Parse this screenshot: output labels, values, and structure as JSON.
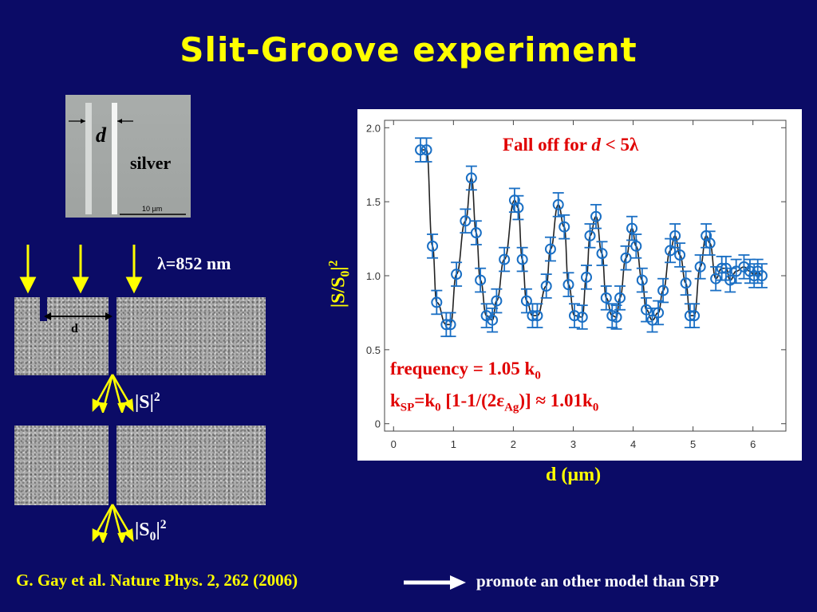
{
  "slide": {
    "title": "Slit-Groove experiment",
    "sem_image": {
      "d_label": "d",
      "material_label": "silver",
      "scale_label": "10 µm"
    },
    "schematic": {
      "wavelength_label": "λ=852 nm",
      "d_label": "d",
      "signal_label": "|S|",
      "signal_power": "2",
      "ref_label_base": "|S",
      "ref_label_sub": "0",
      "ref_label_end": "|",
      "ref_power": "2"
    },
    "annotations": {
      "fall_off_text": "Fall off for ",
      "fall_off_var": "d",
      "fall_off_end": " < 5λ",
      "frequency_text": "frequency = 1.05 k",
      "frequency_sub": "0",
      "ksp_k": "k",
      "ksp_sub": "SP",
      "ksp_mid": "=k",
      "ksp_mid_sub": "0",
      "ksp_bracket": " [1-1/(2ε",
      "ksp_ag_sub": "Ag",
      "ksp_end": ")] ≈ 1.01k",
      "ksp_end_sub": "0"
    },
    "footer": {
      "citation": "G. Gay et al. Nature Phys. 2, 262 (2006)",
      "note": "promote an other model than SPP"
    },
    "colors": {
      "background": "#0b0b66",
      "title": "#ffff00",
      "annotation": "#e00000",
      "data": "#1a6fc4"
    }
  },
  "chart_data": {
    "type": "scatter",
    "xlabel": "d (µm)",
    "ylabel_base": "|S/S",
    "ylabel_sub": "0",
    "ylabel_end": "|",
    "ylabel_power": "2",
    "xlim": [
      -0.15,
      6.55
    ],
    "ylim": [
      -0.05,
      2.05
    ],
    "x_ticks": [
      0,
      1,
      2,
      3,
      4,
      5,
      6
    ],
    "y_ticks": [
      0,
      0.5,
      1.0,
      1.5,
      2.0
    ],
    "y_tick_labels": [
      "0",
      "0.5",
      "1.0",
      "1.5",
      "2.0"
    ],
    "grid": false,
    "series": [
      {
        "type": "scatter_errorbars",
        "x": [
          0.45,
          0.55,
          0.65,
          0.72,
          0.88,
          0.95,
          1.05,
          1.2,
          1.3,
          1.38,
          1.45,
          1.55,
          1.65,
          1.72,
          1.85,
          2.02,
          2.08,
          2.15,
          2.22,
          2.32,
          2.4,
          2.55,
          2.62,
          2.75,
          2.85,
          2.92,
          3.02,
          3.15,
          3.22,
          3.28,
          3.38,
          3.48,
          3.55,
          3.65,
          3.72,
          3.78,
          3.88,
          3.98,
          4.05,
          4.15,
          4.22,
          4.32,
          4.42,
          4.5,
          4.62,
          4.7,
          4.78,
          4.88,
          4.95,
          5.02,
          5.12,
          5.22,
          5.28,
          5.38,
          5.48,
          5.55,
          5.62,
          5.72,
          5.85,
          5.95,
          6.02,
          6.08,
          6.15
        ],
        "y": [
          1.85,
          1.85,
          1.2,
          0.82,
          0.67,
          0.67,
          1.01,
          1.37,
          1.66,
          1.29,
          0.97,
          0.73,
          0.7,
          0.83,
          1.11,
          1.51,
          1.46,
          1.11,
          0.83,
          0.73,
          0.73,
          0.93,
          1.18,
          1.48,
          1.33,
          0.94,
          0.73,
          0.72,
          0.99,
          1.27,
          1.4,
          1.15,
          0.85,
          0.73,
          0.72,
          0.85,
          1.12,
          1.32,
          1.2,
          0.97,
          0.77,
          0.7,
          0.75,
          0.9,
          1.17,
          1.27,
          1.14,
          0.95,
          0.73,
          0.73,
          1.06,
          1.27,
          1.22,
          0.98,
          1.05,
          1.05,
          0.97,
          1.03,
          1.06,
          1.03,
          1.0,
          1.03,
          1.0
        ],
        "error": 0.08
      },
      {
        "type": "fit_curve",
        "model": "damped cosine"
      }
    ]
  }
}
